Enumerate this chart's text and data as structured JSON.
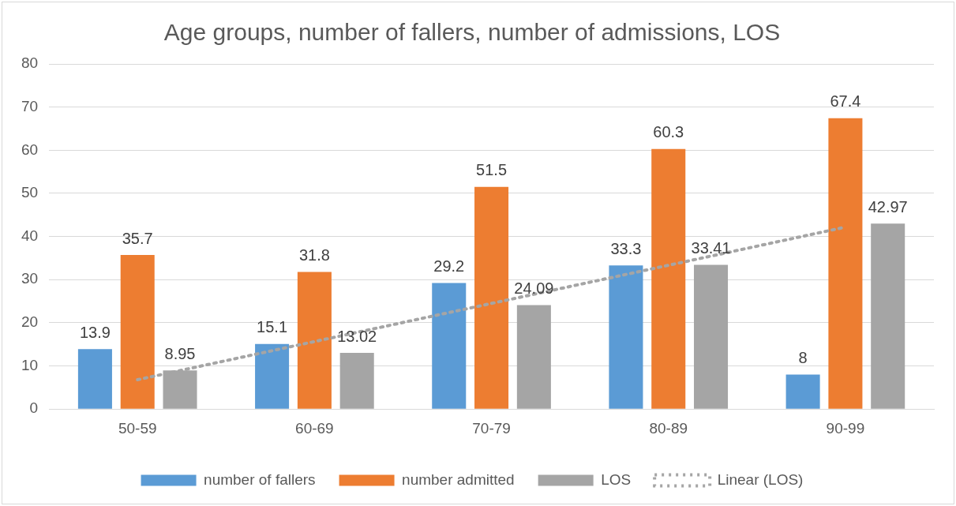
{
  "chart_data": {
    "type": "bar",
    "title": "Age groups, number of fallers, number of admissions, LOS",
    "categories": [
      "50-59",
      "60-69",
      "70-79",
      "80-89",
      "90-99"
    ],
    "series": [
      {
        "name": "number of fallers",
        "color": "#5b9bd5",
        "values": [
          13.9,
          15.1,
          29.2,
          33.3,
          8
        ],
        "value_labels": [
          "13.9",
          "15.1",
          "29.2",
          "33.3",
          "8"
        ]
      },
      {
        "name": "number admitted",
        "color": "#ed7d31",
        "values": [
          35.7,
          31.8,
          51.5,
          60.3,
          67.4
        ],
        "value_labels": [
          "35.7",
          "31.8",
          "51.5",
          "60.3",
          "67.4"
        ]
      },
      {
        "name": "LOS",
        "color": "#a5a5a5",
        "values": [
          8.95,
          13.02,
          24.09,
          33.41,
          42.97
        ],
        "value_labels": [
          "8.95",
          "13.02",
          "24.09",
          "33.41",
          "42.97"
        ]
      },
      {
        "name": "Linear (LOS)",
        "type": "line",
        "color": "#a5a5a5",
        "x": [
          "50-59",
          "60-69",
          "70-79",
          "80-89",
          "90-99"
        ],
        "values": [
          6.8,
          15.65,
          24.49,
          33.33,
          42.18
        ],
        "line_style": "dotted",
        "marker": "none"
      }
    ],
    "ylim": [
      0,
      80
    ],
    "yticks": [
      0,
      10,
      20,
      30,
      40,
      50,
      60,
      70,
      80
    ],
    "grid": "y",
    "legend": "bottom"
  }
}
